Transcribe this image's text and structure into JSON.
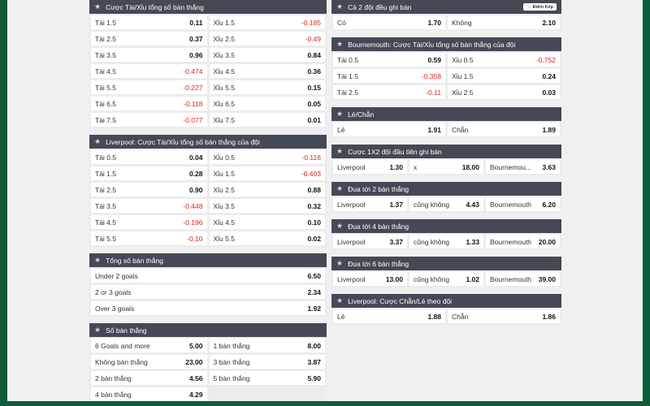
{
  "left": [
    {
      "title": "Cược Tài/Xỉu tổng số bàn thắng",
      "rows": [
        [
          {
            "label": "Tài 1.5",
            "odd": "0.11"
          },
          {
            "label": "Xỉu 1.5",
            "odd": "-0.185"
          }
        ],
        [
          {
            "label": "Tài 2.5",
            "odd": "0.37"
          },
          {
            "label": "Xỉu 2.5",
            "odd": "-0.49"
          }
        ],
        [
          {
            "label": "Tài 3.5",
            "odd": "0.96"
          },
          {
            "label": "Xỉu 3.5",
            "odd": "0.84"
          }
        ],
        [
          {
            "label": "Tài 4.5",
            "odd": "-0.474"
          },
          {
            "label": "Xỉu 4.5",
            "odd": "0.36"
          }
        ],
        [
          {
            "label": "Tài 5.5",
            "odd": "-0.227"
          },
          {
            "label": "Xỉu 5.5",
            "odd": "0.15"
          }
        ],
        [
          {
            "label": "Tài 6.5",
            "odd": "-0.118"
          },
          {
            "label": "Xỉu 6.5",
            "odd": "0.05"
          }
        ],
        [
          {
            "label": "Tài 7.5",
            "odd": "-0.077"
          },
          {
            "label": "Xỉu 7.5",
            "odd": "0.01"
          }
        ]
      ]
    },
    {
      "title": "Liverpool: Cược Tài/Xỉu tổng số bàn thắng của đội",
      "rows": [
        [
          {
            "label": "Tài 0.5",
            "odd": "0.04"
          },
          {
            "label": "Xỉu 0.5",
            "odd": "-0.116"
          }
        ],
        [
          {
            "label": "Tài 1.5",
            "odd": "0.28"
          },
          {
            "label": "Xỉu 1.5",
            "odd": "-0.403"
          }
        ],
        [
          {
            "label": "Tài 2.5",
            "odd": "0.90"
          },
          {
            "label": "Xỉu 2.5",
            "odd": "0.88"
          }
        ],
        [
          {
            "label": "Tài 3.5",
            "odd": "-0.448"
          },
          {
            "label": "Xỉu 3.5",
            "odd": "0.32"
          }
        ],
        [
          {
            "label": "Tài 4.5",
            "odd": "-0.196"
          },
          {
            "label": "Xỉu 4.5",
            "odd": "0.10"
          }
        ],
        [
          {
            "label": "Tài 5.5",
            "odd": "-0.10"
          },
          {
            "label": "Xỉu 5.5",
            "odd": "0.02"
          }
        ]
      ]
    },
    {
      "title": "Tổng số bàn thắng",
      "rows": [
        [
          {
            "label": "Under 2 goals",
            "odd": "6.50"
          }
        ],
        [
          {
            "label": "2 or 3 goals",
            "odd": "2.34"
          }
        ],
        [
          {
            "label": "Over 3 goals",
            "odd": "1.92"
          }
        ]
      ]
    },
    {
      "title": "Số bàn thắng",
      "rows": [
        [
          {
            "label": "6 Goals and more",
            "odd": "5.00"
          },
          {
            "label": "1 bàn thắng",
            "odd": "8.00"
          }
        ],
        [
          {
            "label": "Không bàn thắng",
            "odd": "23.00"
          },
          {
            "label": "3 bàn thắng",
            "odd": "3.87"
          }
        ],
        [
          {
            "label": "2 bàn thắng",
            "odd": "4.56"
          },
          {
            "label": "5 bàn thắng",
            "odd": "5.90"
          }
        ],
        [
          {
            "label": "4 bàn thắng",
            "odd": "4.29"
          },
          null
        ]
      ]
    }
  ],
  "right": [
    {
      "title": "Cả 2 đội đều ghi bàn",
      "badge": "Điểm Kép",
      "rows": [
        [
          {
            "label": "Có",
            "odd": "1.70"
          },
          {
            "label": "Không",
            "odd": "2.10"
          }
        ]
      ]
    },
    {
      "title": "Bournemouth: Cược Tài/Xỉu tổng số bàn thắng của đội",
      "rows": [
        [
          {
            "label": "Tài 0.5",
            "odd": "0.59"
          },
          {
            "label": "Xỉu 0.5",
            "odd": "-0.752"
          }
        ],
        [
          {
            "label": "Tài 1.5",
            "odd": "-0.358"
          },
          {
            "label": "Xỉu 1.5",
            "odd": "0.24"
          }
        ],
        [
          {
            "label": "Tài 2.5",
            "odd": "-0.11"
          },
          {
            "label": "Xỉu 2.5",
            "odd": "0.03"
          }
        ]
      ]
    },
    {
      "title": "Lẻ/Chẵn",
      "rows": [
        [
          {
            "label": "Lẻ",
            "odd": "1.91"
          },
          {
            "label": "Chẵn",
            "odd": "1.89"
          }
        ]
      ]
    },
    {
      "title": "Cược 1X2 đội đầu tiên ghi bàn",
      "rows": [
        [
          {
            "label": "Liverpool",
            "odd": "1.30"
          },
          {
            "label": "x",
            "odd": "18.00"
          },
          {
            "label": "Bournemou...",
            "odd": "3.63"
          }
        ]
      ]
    },
    {
      "title": "Đua tới 2 bàn thắng",
      "rows": [
        [
          {
            "label": "Liverpool",
            "odd": "1.37"
          },
          {
            "label": "cũng không",
            "odd": "4.43"
          },
          {
            "label": "Bournemouth",
            "odd": "6.20"
          }
        ]
      ]
    },
    {
      "title": "Đua tới 4 bàn thắng",
      "rows": [
        [
          {
            "label": "Liverpool",
            "odd": "3.37"
          },
          {
            "label": "cũng không",
            "odd": "1.33"
          },
          {
            "label": "Bournemouth",
            "odd": "20.00"
          }
        ]
      ]
    },
    {
      "title": "Đua tới 6 bàn thắng",
      "rows": [
        [
          {
            "label": "Liverpool",
            "odd": "13.00"
          },
          {
            "label": "cũng không",
            "odd": "1.02"
          },
          {
            "label": "Bournemouth",
            "odd": "39.00"
          }
        ]
      ]
    },
    {
      "title": "Liverpool: Cược Chẵn/Lẻ theo đội",
      "rows": [
        [
          {
            "label": "Lẻ",
            "odd": "1.88"
          },
          {
            "label": "Chẵn",
            "odd": "1.86"
          }
        ]
      ]
    }
  ],
  "icons": {
    "star": "star-icon",
    "badge": "double-points-icon"
  },
  "colors": {
    "background": "#0d5c3a",
    "panel": "#f0f0f1",
    "header": "#454955",
    "negative": "#e0241c"
  }
}
